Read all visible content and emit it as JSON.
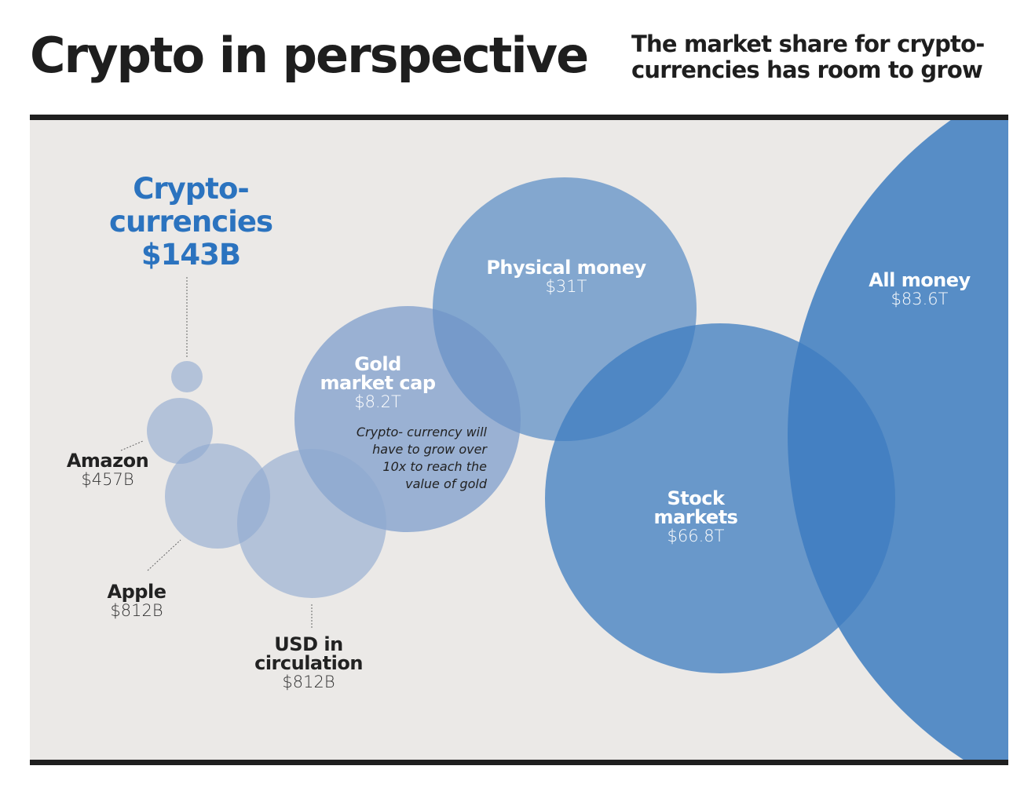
{
  "title": "Crypto in perspective",
  "subtitle": "The market share for crypto-currencies has room to grow",
  "colors": {
    "background": "#ebe9e7",
    "light_bubble": "#a9bcd9",
    "dark_bubble": "#3d7cc0",
    "crypto_text": "#2b73bf",
    "rule": "#1f1f1f"
  },
  "items": [
    {
      "name": "Crypto- currencies",
      "value": "$143B"
    },
    {
      "name": "Amazon",
      "value": "$457B"
    },
    {
      "name": "Apple",
      "value": "$812B"
    },
    {
      "name": "USD in circulation",
      "value": "$812B"
    },
    {
      "name": "Gold market cap",
      "value": "$8.2T"
    },
    {
      "name": "Physical money",
      "value": "$31T"
    },
    {
      "name": "Stock markets",
      "value": "$66.8T"
    },
    {
      "name": "All money",
      "value": "$83.6T"
    }
  ],
  "crypto_lines": [
    "Crypto-",
    "currencies",
    "$143B"
  ],
  "gold_lines": [
    "Gold",
    "market cap"
  ],
  "stock_lines": [
    "Stock",
    "markets"
  ],
  "usd_lines": [
    "USD in",
    "circulation"
  ],
  "note": "Crypto- currency will have to grow over 10x to reach the value of gold"
}
